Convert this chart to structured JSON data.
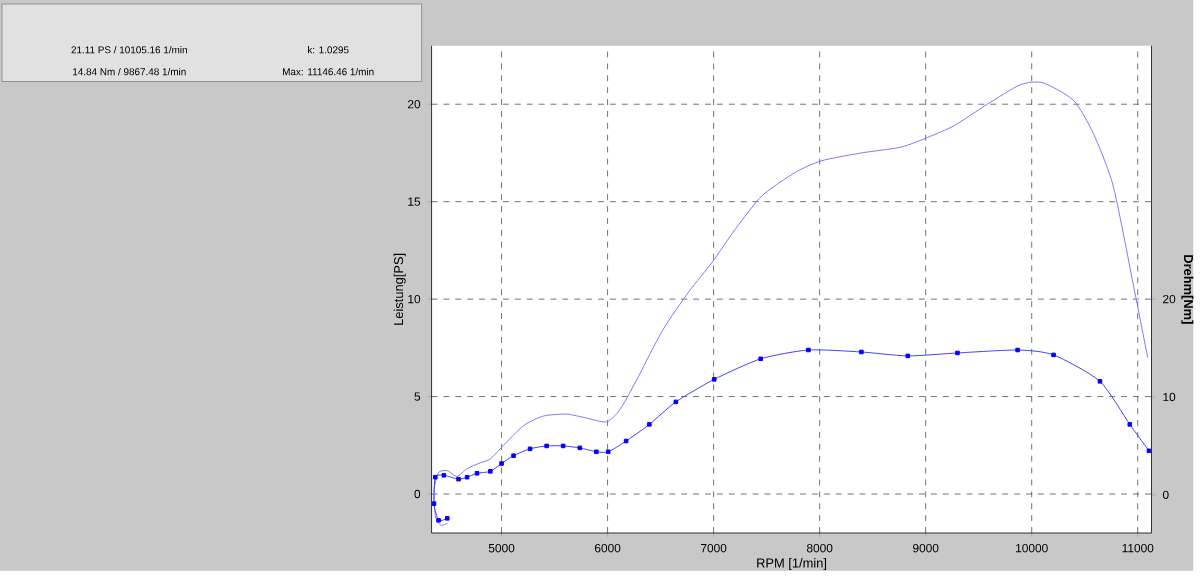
{
  "chart_data": {
    "type": "line",
    "xlabel": "RPM [1/min]",
    "ylabel": "Leistung[PS]",
    "y2label": "Drehm[Nm]",
    "xlim": [
      4340,
      11130
    ],
    "xticks": [
      5000,
      6000,
      7000,
      8000,
      9000,
      10000,
      11000
    ],
    "ylim": [
      -2,
      23
    ],
    "yticks": [
      0,
      5,
      10,
      15,
      20
    ],
    "y2lim": [
      -3.9,
      45.9
    ],
    "y2ticks": [
      0,
      10,
      20
    ],
    "grid": true,
    "annotations": [
      "21.11 PS / 10105.16 1/min",
      "k: 1.0295",
      "14.84 Nm / 9867.48 1/min",
      "Max: 11146.46 1/min"
    ],
    "series": [
      {
        "color": "#7878ff",
        "marker": "none",
        "x": [
          4488,
          4425,
          4375,
          4363,
          4406,
          4488,
          4581,
          4675,
          4800,
          4894,
          5019,
          5206,
          5394,
          5612,
          5800,
          5988,
          6113,
          6269,
          6519,
          6769,
          6988,
          7206,
          7456,
          7769,
          8019,
          8394,
          8769,
          9019,
          9269,
          9581,
          9894,
          10105,
          10394,
          10581,
          10769,
          10956,
          11094
        ],
        "values": [
          -1.5,
          -1.6,
          -1.1,
          0.2,
          1.1,
          1.2,
          0.9,
          1.3,
          1.6,
          1.8,
          2.5,
          3.5,
          4.0,
          4.1,
          3.9,
          3.7,
          4.3,
          5.8,
          8.4,
          10.4,
          11.9,
          13.6,
          15.3,
          16.5,
          17.1,
          17.5,
          17.8,
          18.3,
          18.9,
          20.0,
          21.0,
          21.1,
          20.2,
          18.5,
          15.8,
          10.8,
          7.0
        ]
      },
      {
        "color": "#4040ff",
        "marker": "square",
        "axis": "y2",
        "x": [
          4488,
          4406,
          4363,
          4375,
          4456,
          4594,
          4675,
          4769,
          4894,
          5000,
          5113,
          5269,
          5425,
          5581,
          5738,
          5894,
          6006,
          6175,
          6394,
          6644,
          7006,
          7444,
          7894,
          8394,
          8831,
          9300,
          9867,
          10206,
          10644,
          10925,
          11106
        ],
        "values": [
          -2.4,
          -2.6,
          -0.9,
          1.8,
          2.0,
          1.6,
          1.8,
          2.2,
          2.4,
          3.2,
          4.0,
          4.7,
          5.0,
          5.0,
          4.8,
          4.4,
          4.4,
          5.5,
          7.2,
          9.5,
          11.8,
          13.9,
          14.8,
          14.6,
          14.2,
          14.5,
          14.8,
          14.3,
          11.6,
          7.2,
          4.5
        ]
      }
    ]
  }
}
